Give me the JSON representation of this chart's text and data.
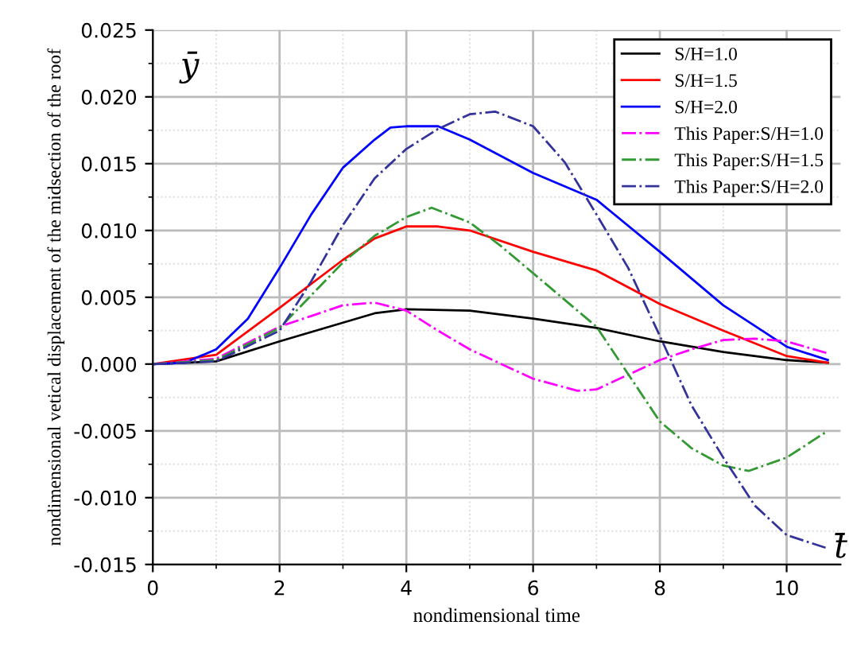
{
  "chart_data": {
    "type": "line",
    "xlabel": "nondimensional time",
    "ylabel": "nondimensional vetical displacement of the midsection of the roof",
    "annotations": [
      "ȳ",
      "t̄"
    ],
    "xlim": [
      0,
      10.85
    ],
    "ylim": [
      -0.015,
      0.025
    ],
    "xticks": [
      0,
      2,
      4,
      6,
      8,
      10
    ],
    "yticks": [
      {
        "value": -0.015,
        "label": "-0.015"
      },
      {
        "value": -0.01,
        "label": "-0.010"
      },
      {
        "value": -0.005,
        "label": "-0.005"
      },
      {
        "value": 0,
        "label": "0.000"
      },
      {
        "value": 0.005,
        "label": "0.005"
      },
      {
        "value": 0.01,
        "label": "0.010"
      },
      {
        "value": 0.015,
        "label": "0.015"
      },
      {
        "value": 0.02,
        "label": "0.020"
      },
      {
        "value": 0.025,
        "label": "0.025"
      }
    ],
    "grid": true,
    "legend": "top right",
    "marker": "none",
    "series": [
      {
        "name": "S/H=1.0",
        "color": "#000000",
        "line_style": "solid",
        "x": [
          0,
          1,
          2,
          3,
          3.5,
          4,
          5,
          6,
          7,
          8,
          9,
          10,
          10.65
        ],
        "values": [
          0,
          0.0002,
          0.0017,
          0.0031,
          0.0038,
          0.0041,
          0.004,
          0.0034,
          0.0027,
          0.0017,
          0.0009,
          0.0003,
          0.0001
        ]
      },
      {
        "name": "S/H=1.5",
        "color": "#ff0000",
        "line_style": "solid",
        "x": [
          0,
          1,
          2,
          3,
          3.5,
          4,
          4.5,
          5,
          6,
          7,
          8,
          9,
          10,
          10.65
        ],
        "values": [
          0,
          0.0007,
          0.0042,
          0.0078,
          0.0094,
          0.0103,
          0.0103,
          0.01,
          0.0084,
          0.007,
          0.0045,
          0.0025,
          0.0006,
          0.0001
        ]
      },
      {
        "name": "S/H=2.0",
        "color": "#0000ff",
        "line_style": "solid",
        "x": [
          0,
          0.5,
          1,
          1.5,
          2,
          2.5,
          3,
          3.5,
          3.75,
          4,
          4.5,
          5,
          6,
          7,
          8,
          9,
          10,
          10.65
        ],
        "values": [
          0,
          0.0001,
          0.0011,
          0.0034,
          0.0072,
          0.0112,
          0.0147,
          0.0168,
          0.0177,
          0.0178,
          0.0178,
          0.0168,
          0.0143,
          0.0123,
          0.0084,
          0.0044,
          0.0013,
          0.0003
        ]
      },
      {
        "name": "This Paper:S/H=1.0",
        "color": "#ff00ff",
        "line_style": "dashdot",
        "x": [
          0,
          1,
          2,
          2.5,
          3,
          3.5,
          4,
          4.5,
          5,
          6,
          6.7,
          7,
          8,
          8.5,
          9,
          9.5,
          10,
          10.65
        ],
        "values": [
          0,
          0.0004,
          0.0028,
          0.0036,
          0.0044,
          0.0046,
          0.004,
          0.0025,
          0.0011,
          -0.0011,
          -0.002,
          -0.0019,
          0.0003,
          0.0011,
          0.0018,
          0.0019,
          0.0017,
          0.0008
        ]
      },
      {
        "name": "This Paper:S/H=1.5",
        "color": "#339933",
        "line_style": "dashdot",
        "x": [
          0,
          1,
          2,
          3,
          3.5,
          4,
          4.4,
          5,
          5.5,
          6,
          7,
          8,
          8.5,
          9,
          9.4,
          10,
          10.65
        ],
        "values": [
          0,
          0.0003,
          0.0027,
          0.0076,
          0.0096,
          0.011,
          0.0117,
          0.0106,
          0.0088,
          0.0068,
          0.0028,
          -0.0043,
          -0.0063,
          -0.0076,
          -0.008,
          -0.007,
          -0.005
        ]
      },
      {
        "name": "This Paper:S/H=2.0",
        "color": "#333399",
        "line_style": "dashdot",
        "x": [
          0,
          1,
          2,
          2.5,
          3,
          3.5,
          4,
          4.5,
          5,
          5.4,
          6,
          6.5,
          7,
          7.5,
          8,
          8.5,
          9,
          9.5,
          10,
          10.65
        ],
        "values": [
          0,
          0.0002,
          0.0025,
          0.0062,
          0.0104,
          0.0139,
          0.0161,
          0.0176,
          0.0187,
          0.0189,
          0.0178,
          0.0151,
          0.0112,
          0.0072,
          0.0021,
          -0.0031,
          -0.007,
          -0.0106,
          -0.0128,
          -0.0138
        ]
      }
    ]
  }
}
